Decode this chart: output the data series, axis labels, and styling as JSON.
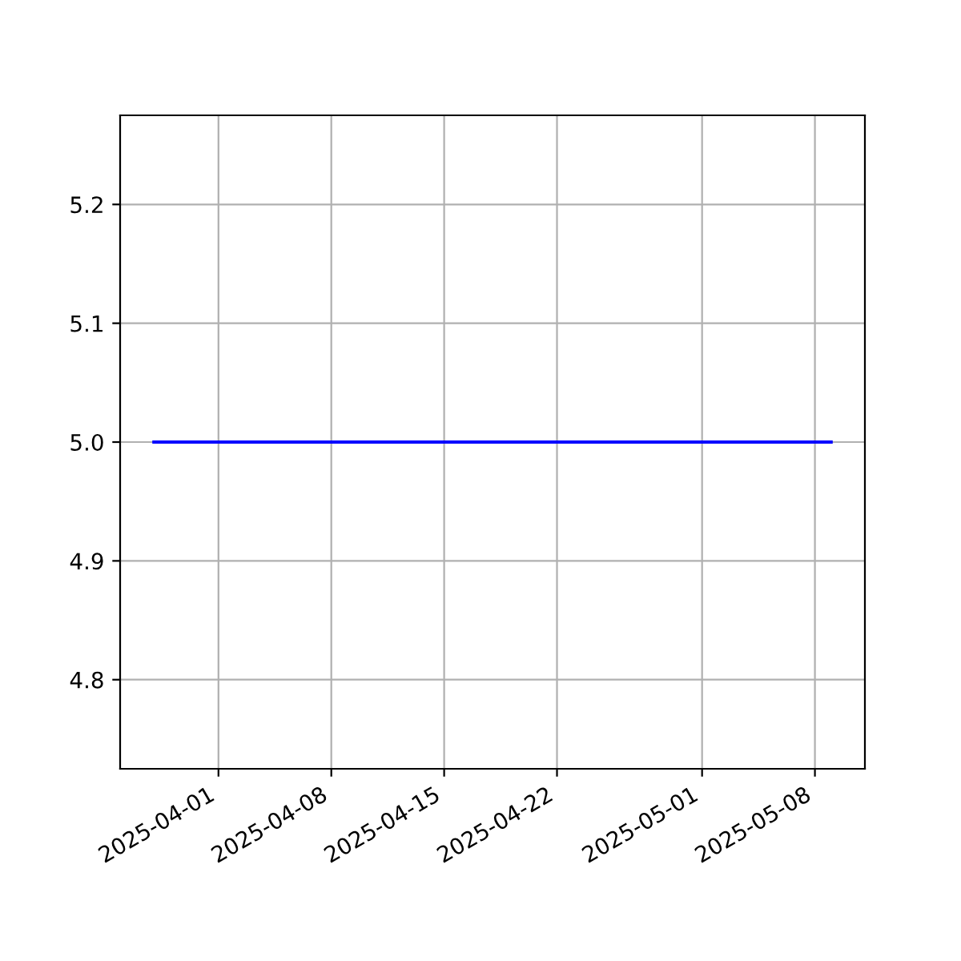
{
  "chart_data": {
    "type": "line",
    "x": [
      "2025-03-28",
      "2025-05-09"
    ],
    "series": [
      {
        "color": "#0000ff",
        "values": [
          5.0,
          5.0
        ]
      }
    ],
    "xlim": [
      "2025-03-25T21:36",
      "2025-05-11T02:24"
    ],
    "xticks": [
      "2025-04-01",
      "2025-04-08",
      "2025-04-15",
      "2025-04-22",
      "2025-05-01",
      "2025-05-08"
    ],
    "ylim": [
      4.725,
      5.275
    ],
    "yticks": [
      4.8,
      4.9,
      {
        "value": 5,
        "label": "5.0"
      },
      5.1,
      5.2
    ],
    "grid": true,
    "marker": "none",
    "line_style": "solid"
  }
}
